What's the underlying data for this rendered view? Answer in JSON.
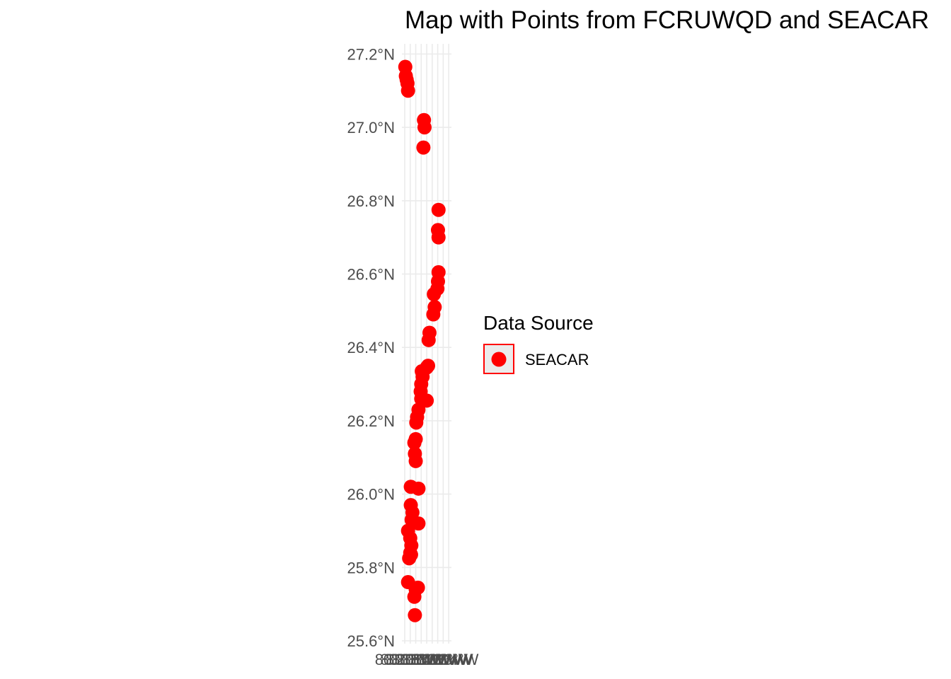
{
  "chart_data": {
    "type": "scatter",
    "title": "Map with Points from FCRUWQD and SEACAR",
    "xlabel": "",
    "ylabel": "",
    "xlim": [
      -80.2,
      -80.03
    ],
    "ylim": [
      25.6,
      27.22
    ],
    "y_ticks": [
      25.6,
      25.8,
      26.0,
      26.2,
      26.4,
      26.6,
      26.8,
      27.0,
      27.2
    ],
    "y_tick_labels": [
      "25.6°N",
      "25.8°N",
      "26.0°N",
      "26.2°N",
      "26.4°N",
      "26.6°N",
      "26.8°N",
      "27.0°N",
      "27.2°N"
    ],
    "x_ticks": [
      -80.2,
      -80.18,
      -80.16,
      -80.14,
      -80.12,
      -80.1,
      -80.08,
      -80.06,
      -80.04
    ],
    "x_tick_labels": [
      "80.20°W",
      "80.18°W",
      "80.16°W",
      "80.14°W",
      "80.12°W",
      "80.10°W",
      "80.08°W",
      "80.06°W",
      "80.04°W"
    ],
    "grid": true,
    "legend": {
      "title": "Data Source",
      "placement": "right",
      "entries": [
        {
          "label": "SEACAR",
          "color": "#ff0000"
        }
      ]
    },
    "series": [
      {
        "name": "SEACAR",
        "color": "#ff0000",
        "points": [
          [
            -80.198,
            27.165
          ],
          [
            -80.196,
            27.14
          ],
          [
            -80.193,
            27.13
          ],
          [
            -80.19,
            27.12
          ],
          [
            -80.188,
            27.1
          ],
          [
            -80.13,
            27.02
          ],
          [
            -80.128,
            27.0
          ],
          [
            -80.132,
            26.945
          ],
          [
            -80.077,
            26.775
          ],
          [
            -80.079,
            26.72
          ],
          [
            -80.077,
            26.7
          ],
          [
            -80.077,
            26.605
          ],
          [
            -80.079,
            26.58
          ],
          [
            -80.081,
            26.56
          ],
          [
            -80.094,
            26.545
          ],
          [
            -80.091,
            26.51
          ],
          [
            -80.096,
            26.49
          ],
          [
            -80.11,
            26.44
          ],
          [
            -80.113,
            26.42
          ],
          [
            -80.115,
            26.35
          ],
          [
            -80.12,
            26.345
          ],
          [
            -80.138,
            26.335
          ],
          [
            -80.135,
            26.32
          ],
          [
            -80.14,
            26.3
          ],
          [
            -80.142,
            26.28
          ],
          [
            -80.14,
            26.26
          ],
          [
            -80.12,
            26.255
          ],
          [
            -80.15,
            26.23
          ],
          [
            -80.155,
            26.21
          ],
          [
            -80.158,
            26.195
          ],
          [
            -80.16,
            26.15
          ],
          [
            -80.165,
            26.14
          ],
          [
            -80.163,
            26.11
          ],
          [
            -80.16,
            26.09
          ],
          [
            -80.178,
            26.02
          ],
          [
            -80.15,
            26.015
          ],
          [
            -80.178,
            25.97
          ],
          [
            -80.172,
            25.95
          ],
          [
            -80.15,
            25.92
          ],
          [
            -80.175,
            25.93
          ],
          [
            -80.188,
            25.9
          ],
          [
            -80.18,
            25.88
          ],
          [
            -80.176,
            25.86
          ],
          [
            -80.18,
            25.84
          ],
          [
            -80.177,
            25.835
          ],
          [
            -80.184,
            25.825
          ],
          [
            -80.188,
            25.76
          ],
          [
            -80.152,
            25.745
          ],
          [
            -80.16,
            25.74
          ],
          [
            -80.165,
            25.72
          ],
          [
            -80.163,
            25.67
          ]
        ]
      }
    ]
  }
}
